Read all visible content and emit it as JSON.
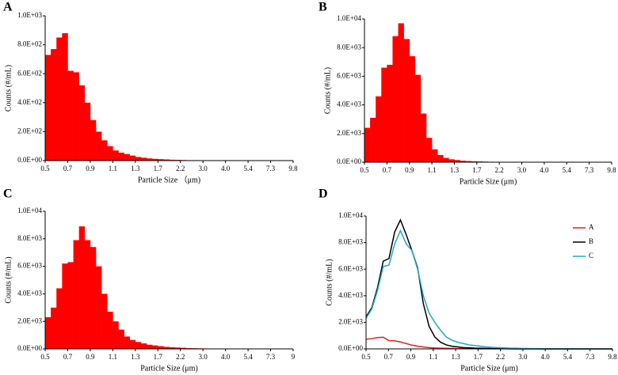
{
  "chart_data": [
    {
      "type": "bar",
      "panel_label": "A",
      "ylabel": "Counts  (#/mL)",
      "xlabel": "Particle Size （μm)",
      "color": "#ff0000",
      "x_labels": [
        "0.5",
        "0.7",
        "0.9",
        "1.1",
        "1.3",
        "1.7",
        "2.2",
        "3.0",
        "4.0",
        "5.4",
        "7.3",
        "9.8"
      ],
      "ylim": [
        0,
        1000
      ],
      "yticks": [
        {
          "value": 0,
          "label": "0.0E+00"
        },
        {
          "value": 200,
          "label": "2.0E+02"
        },
        {
          "value": 400,
          "label": "4.0E+02"
        },
        {
          "value": 600,
          "label": "6.0E+02"
        },
        {
          "value": 800,
          "label": "8.0E+02"
        },
        {
          "value": 1000,
          "label": "1.0E+03"
        }
      ],
      "values": [
        730,
        770,
        850,
        880,
        620,
        610,
        520,
        400,
        280,
        200,
        140,
        100,
        70,
        55,
        45,
        35,
        25,
        20,
        15,
        12,
        10,
        8,
        6,
        5,
        4,
        3,
        3,
        2,
        2,
        2,
        1,
        1,
        1,
        1,
        1,
        1,
        1,
        1,
        1,
        0,
        0,
        0,
        0,
        0
      ]
    },
    {
      "type": "bar",
      "panel_label": "B",
      "ylabel": "Counts  (#/mL)",
      "xlabel": "Particle Size (μm)",
      "color": "#ff0000",
      "x_labels": [
        "0.5",
        "0.7",
        "0.9",
        "1.1",
        "1.3",
        "1.7",
        "2.2",
        "3.0",
        "4.0",
        "5.4",
        "7.3",
        "9.8"
      ],
      "ylim": [
        0,
        10000
      ],
      "yticks": [
        {
          "value": 0,
          "label": "0.0E+00"
        },
        {
          "value": 2000,
          "label": "2.0E+03"
        },
        {
          "value": 4000,
          "label": "4.0E+03"
        },
        {
          "value": 6000,
          "label": "6.0E+03"
        },
        {
          "value": 8000,
          "label": "8.0E+03"
        },
        {
          "value": 10000,
          "label": "1.0E+04"
        }
      ],
      "values": [
        2400,
        3100,
        4600,
        6600,
        6800,
        8800,
        9700,
        8600,
        7400,
        6100,
        3400,
        1700,
        900,
        500,
        300,
        200,
        150,
        100,
        80,
        60,
        50,
        40,
        30,
        25,
        20,
        15,
        10,
        8,
        6,
        5,
        4,
        3,
        2,
        2,
        1,
        1,
        1,
        1,
        0,
        0,
        0,
        0,
        0,
        0
      ]
    },
    {
      "type": "bar",
      "panel_label": "C",
      "ylabel": "Counts  (#/mL)",
      "xlabel": "Particle Size (μm)",
      "color": "#ff0000",
      "x_labels": [
        "0.5",
        "0.7",
        "0.9",
        "1.1",
        "1.3",
        "1.7",
        "2.2",
        "3.0",
        "4.0",
        "5.4",
        "7.3",
        "9"
      ],
      "ylim": [
        0,
        10000
      ],
      "yticks": [
        {
          "value": 0,
          "label": "0.0E+00"
        },
        {
          "value": 2000,
          "label": "2.0E+03"
        },
        {
          "value": 4000,
          "label": "4.0E+03"
        },
        {
          "value": 6000,
          "label": "6.0E+03"
        },
        {
          "value": 8000,
          "label": "8.0E+03"
        },
        {
          "value": 10000,
          "label": "1.0E+04"
        }
      ],
      "values": [
        2300,
        3000,
        4400,
        6200,
        6300,
        7900,
        8900,
        7900,
        7400,
        6000,
        4000,
        2700,
        2000,
        1400,
        900,
        650,
        500,
        400,
        300,
        250,
        200,
        150,
        120,
        100,
        80,
        60,
        50,
        40,
        30,
        25,
        20,
        15,
        10,
        8,
        6,
        5,
        4,
        3,
        2,
        1,
        1,
        1,
        0,
        0
      ]
    },
    {
      "type": "line",
      "panel_label": "D",
      "ylabel": "Counts (#/mL)",
      "xlabel": "Particle Size (μm)",
      "x_labels": [
        "0.5",
        "0.7",
        "0.9",
        "1.1",
        "1.3",
        "1.7",
        "2.2",
        "3.0",
        "4.0",
        "5.4",
        "7.3",
        "9.8"
      ],
      "ylim": [
        0,
        10000
      ],
      "yticks": [
        {
          "value": 0,
          "label": "0.0E+00"
        },
        {
          "value": 2000,
          "label": "2.0E+03"
        },
        {
          "value": 4000,
          "label": "4.0E+03"
        },
        {
          "value": 6000,
          "label": "6.0E+03"
        },
        {
          "value": 8000,
          "label": "8.0E+03"
        },
        {
          "value": 10000,
          "label": "1.0E+04"
        }
      ],
      "series": [
        {
          "name": "A",
          "color": "#e02020",
          "values": [
            730,
            770,
            850,
            880,
            620,
            610,
            520,
            400,
            280,
            200,
            140,
            100,
            70,
            55,
            45,
            35,
            25,
            20,
            15,
            12,
            10,
            8,
            6,
            5,
            4,
            3,
            3,
            2,
            2,
            2,
            1,
            1,
            1,
            1,
            1,
            1,
            1,
            1,
            1,
            0,
            0,
            0,
            0,
            0
          ]
        },
        {
          "name": "B",
          "color": "#000000",
          "values": [
            2400,
            3100,
            4600,
            6600,
            6800,
            8800,
            9700,
            8600,
            7400,
            6100,
            3400,
            1700,
            900,
            500,
            300,
            200,
            150,
            100,
            80,
            60,
            50,
            40,
            30,
            25,
            20,
            15,
            10,
            8,
            6,
            5,
            4,
            3,
            2,
            2,
            1,
            1,
            1,
            1,
            0,
            0,
            0,
            0,
            0,
            0
          ]
        },
        {
          "name": "C",
          "color": "#1fa8c8",
          "values": [
            2300,
            3000,
            4400,
            6200,
            6300,
            7900,
            8900,
            7900,
            7400,
            6000,
            4000,
            2700,
            2000,
            1400,
            900,
            650,
            500,
            400,
            300,
            250,
            200,
            150,
            120,
            100,
            80,
            60,
            50,
            40,
            30,
            25,
            20,
            15,
            10,
            8,
            6,
            5,
            4,
            3,
            2,
            1,
            1,
            1,
            0,
            0
          ]
        }
      ]
    }
  ]
}
